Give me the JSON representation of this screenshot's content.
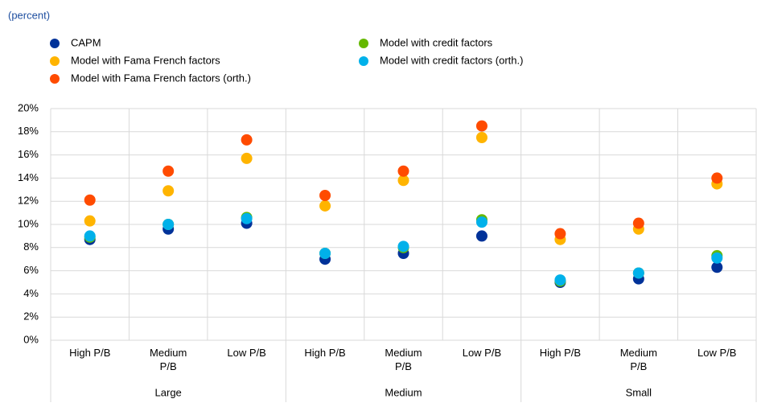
{
  "chart_data": {
    "type": "scatter",
    "subtitle": "(percent)",
    "categories": [
      "High P/B",
      "Medium P/B",
      "Low P/B",
      "High P/B",
      "Medium P/B",
      "Low P/B",
      "High P/B",
      "Medium P/B",
      "Low P/B"
    ],
    "groups": [
      "Large",
      "Medium",
      "Small"
    ],
    "series": [
      {
        "name": "CAPM",
        "color": "#003299",
        "values": [
          8.7,
          9.6,
          10.1,
          7.0,
          7.5,
          9.0,
          5.0,
          5.3,
          6.3
        ]
      },
      {
        "name": "Model with Fama French factors",
        "color": "#ffb400",
        "values": [
          10.3,
          12.9,
          15.7,
          11.6,
          13.8,
          17.5,
          8.7,
          9.6,
          13.5
        ]
      },
      {
        "name": "Model with Fama French factors (orth.)",
        "color": "#ff4b00",
        "values": [
          12.1,
          14.6,
          17.3,
          12.5,
          14.6,
          18.5,
          9.2,
          10.1,
          14.0
        ]
      },
      {
        "name": "Model with credit factors",
        "color": "#65b800",
        "values": [
          8.9,
          10.0,
          10.6,
          7.5,
          8.0,
          10.4,
          5.1,
          5.8,
          7.3
        ]
      },
      {
        "name": "Model with credit factors (orth.)",
        "color": "#00b1ea",
        "values": [
          9.0,
          10.0,
          10.5,
          7.5,
          8.1,
          10.2,
          5.2,
          5.8,
          7.1
        ]
      }
    ],
    "ylim": [
      0,
      20
    ],
    "yticks": [
      {
        "value": 0,
        "label": "0%"
      },
      {
        "value": 2,
        "label": "2%"
      },
      {
        "value": 4,
        "label": "4%"
      },
      {
        "value": 6,
        "label": "6%"
      },
      {
        "value": 8,
        "label": "8%"
      },
      {
        "value": 10,
        "label": "10%"
      },
      {
        "value": 12,
        "label": "12%"
      },
      {
        "value": 14,
        "label": "14%"
      },
      {
        "value": 16,
        "label": "16%"
      },
      {
        "value": 18,
        "label": "18%"
      },
      {
        "value": 20,
        "label": "20%"
      }
    ],
    "grid": true
  }
}
